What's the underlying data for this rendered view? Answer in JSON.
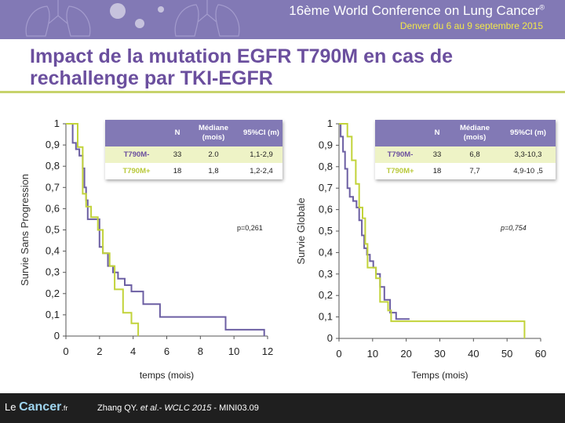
{
  "banner": {
    "conference": "16ème World Conference on Lung Cancer",
    "conference_mark": "®",
    "dates": "Denver du 6 au 9 septembre 2015"
  },
  "slide": {
    "title": "Impact de la mutation EGFR T790M en cas de rechallenge par TKI-EGFR"
  },
  "colors": {
    "t790m_minus": "#6c5fa3",
    "t790m_plus": "#c2d33a",
    "accent_purple": "#8279b5",
    "title_purple": "#6b4f9e"
  },
  "chart_data": [
    {
      "type": "line",
      "xlabel": "temps (mois)",
      "ylabel": "Survie Sans Progression",
      "xlim": [
        0,
        12
      ],
      "ylim": [
        0,
        1
      ],
      "x_ticks": [
        "0",
        "2",
        "4",
        "6",
        "8",
        "10",
        "12"
      ],
      "y_ticks": [
        "0",
        "0,1",
        "0,2",
        "0,3",
        "0,4",
        "0,5",
        "0,6",
        "0,7",
        "0,8",
        "0,9",
        "1"
      ],
      "p_value": "p=0,261",
      "grid": false,
      "table": {
        "headers": [
          "",
          "N",
          "Médiane (mois)",
          "95%CI (m)"
        ],
        "rows": [
          [
            "T790M-",
            "33",
            "2.0",
            "1,1-2,9"
          ],
          [
            "T790M+",
            "18",
            "1,8",
            "1,2-2,4"
          ]
        ]
      },
      "series": [
        {
          "name": "T790M-",
          "x": [
            0,
            0.4,
            0.4,
            0.6,
            0.6,
            0.8,
            0.8,
            1.0,
            1.0,
            1.1,
            1.1,
            1.2,
            1.2,
            1.3,
            1.3,
            1.5,
            1.5,
            2.0,
            2.0,
            2.2,
            2.2,
            2.5,
            2.5,
            2.8,
            2.8,
            3.1,
            3.1,
            3.5,
            3.5,
            3.9,
            3.9,
            4.6,
            4.6,
            5.6,
            5.6,
            9.5,
            9.5,
            11.8,
            11.8
          ],
          "y": [
            1,
            1,
            0.91,
            0.91,
            0.88,
            0.88,
            0.85,
            0.85,
            0.79,
            0.79,
            0.7,
            0.7,
            0.64,
            0.64,
            0.55,
            0.55,
            0.55,
            0.55,
            0.42,
            0.42,
            0.39,
            0.39,
            0.33,
            0.33,
            0.3,
            0.3,
            0.27,
            0.27,
            0.24,
            0.24,
            0.21,
            0.21,
            0.15,
            0.15,
            0.09,
            0.09,
            0.03,
            0.03,
            0
          ]
        },
        {
          "name": "T790M+",
          "x": [
            0,
            0.7,
            0.7,
            1.0,
            1.0,
            1.2,
            1.2,
            1.5,
            1.5,
            1.9,
            1.9,
            2.2,
            2.2,
            2.6,
            2.6,
            2.9,
            2.9,
            3.4,
            3.4,
            3.9,
            3.9,
            4.3,
            4.3
          ],
          "y": [
            1,
            1,
            0.89,
            0.89,
            0.67,
            0.67,
            0.61,
            0.61,
            0.56,
            0.56,
            0.5,
            0.5,
            0.39,
            0.39,
            0.33,
            0.33,
            0.22,
            0.22,
            0.11,
            0.11,
            0.06,
            0.06,
            0
          ]
        }
      ]
    },
    {
      "type": "line",
      "xlabel": "Temps  (mois)",
      "ylabel": "Survie Globale",
      "xlim": [
        0,
        60
      ],
      "ylim": [
        0,
        1
      ],
      "x_ticks": [
        "0",
        "10",
        "20",
        "30",
        "40",
        "50",
        "60"
      ],
      "y_ticks": [
        "0",
        "0,1",
        "0,2",
        "0,3",
        "0,4",
        "0,5",
        "0,6",
        "0,7",
        "0,8",
        "0,9",
        "1"
      ],
      "p_value": "p=0,754",
      "grid": false,
      "table": {
        "headers": [
          "",
          "N",
          "Médiane (mois)",
          "95%CI (m)"
        ],
        "rows": [
          [
            "T790M-",
            "33",
            "6,8",
            "3,3-10,3"
          ],
          [
            "T790M+",
            "18",
            "7,7",
            "4,9-10 ,5"
          ]
        ]
      },
      "series": [
        {
          "name": "T790M-",
          "x": [
            0,
            0.5,
            0.5,
            1.2,
            1.2,
            1.8,
            1.8,
            2.5,
            2.5,
            3.2,
            3.2,
            4.2,
            4.2,
            5.2,
            5.2,
            6.0,
            6.0,
            6.8,
            6.8,
            7.5,
            7.5,
            8.3,
            8.3,
            9.2,
            9.2,
            10.2,
            10.2,
            11.0,
            11.0,
            12.2,
            12.2,
            13.5,
            13.5,
            15.2,
            15.2,
            17.0,
            17.0,
            21.0
          ],
          "y": [
            1,
            1,
            0.94,
            0.94,
            0.87,
            0.87,
            0.79,
            0.79,
            0.7,
            0.7,
            0.66,
            0.66,
            0.64,
            0.64,
            0.61,
            0.61,
            0.55,
            0.55,
            0.48,
            0.48,
            0.42,
            0.42,
            0.39,
            0.39,
            0.36,
            0.36,
            0.33,
            0.33,
            0.3,
            0.3,
            0.24,
            0.24,
            0.18,
            0.18,
            0.12,
            0.12,
            0.09,
            0.09
          ]
        },
        {
          "name": "T790M+",
          "x": [
            0,
            2.5,
            2.5,
            3.8,
            3.8,
            5.0,
            5.0,
            6.0,
            6.0,
            7.0,
            7.0,
            7.8,
            7.8,
            8.5,
            8.5,
            11.0,
            11.0,
            12.2,
            12.2,
            14.6,
            14.6,
            15.5,
            15.5,
            55.2,
            55.2
          ],
          "y": [
            1,
            1,
            0.94,
            0.94,
            0.83,
            0.83,
            0.72,
            0.72,
            0.61,
            0.61,
            0.56,
            0.56,
            0.44,
            0.44,
            0.33,
            0.33,
            0.28,
            0.28,
            0.17,
            0.17,
            0.13,
            0.13,
            0.08,
            0.08,
            0
          ]
        }
      ]
    }
  ],
  "footer": {
    "logo_prefix": "Le ",
    "logo_main": "Cancer",
    "logo_suffix": ".fr",
    "ref_authors": "Zhang QY. ",
    "ref_etal": "et al",
    "ref_mid": ".- ",
    "ref_source": "WCLC 2015",
    "ref_code": " - MINI03.09"
  }
}
